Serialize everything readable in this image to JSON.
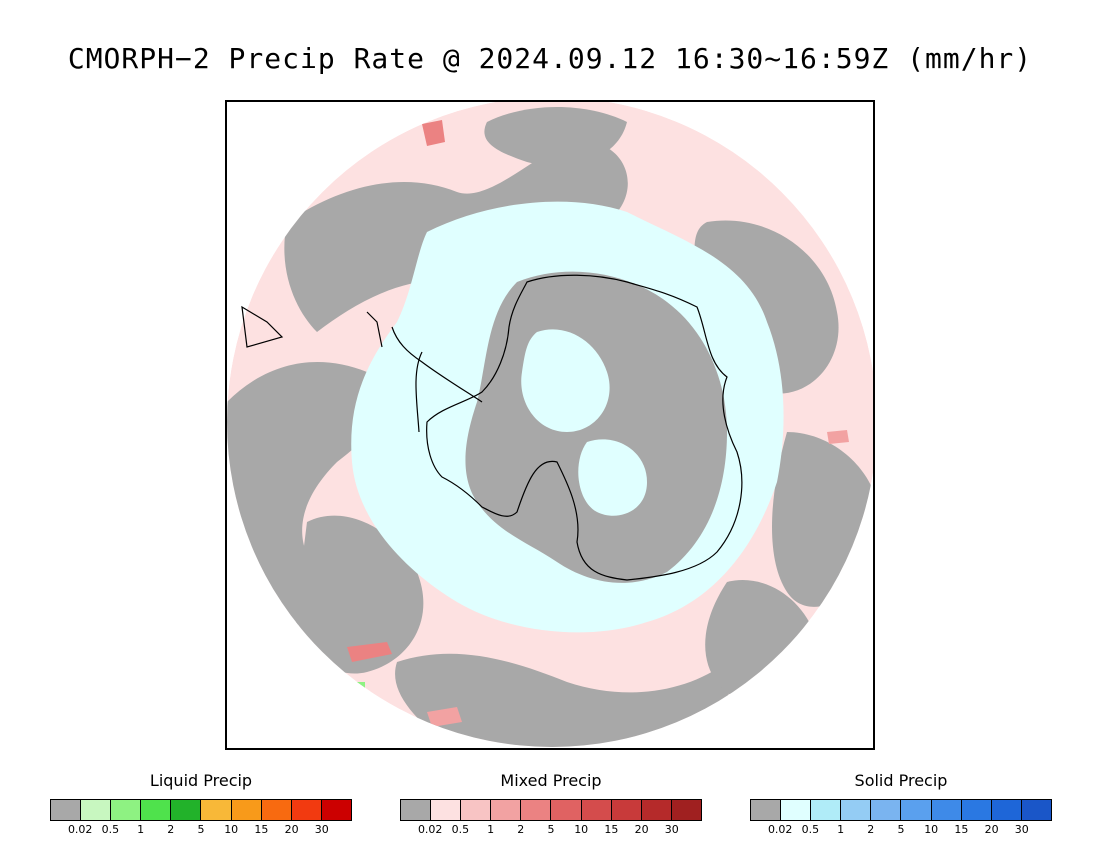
{
  "title": "CMORPH−2 Precip Rate @ 2024.09.12 16:30~16:59Z (mm/hr)",
  "map": {
    "projection": "south-polar-stereographic",
    "features": [
      "precip-field",
      "coastline"
    ],
    "region": "Antarctica and Southern Ocean"
  },
  "legends": [
    {
      "title": "Liquid Precip",
      "ticks": [
        "0.02",
        "0.5",
        "1",
        "2",
        "5",
        "10",
        "15",
        "20",
        "30"
      ],
      "colors": [
        "#a8a8a8",
        "#c8f7c0",
        "#8ef282",
        "#4fe24c",
        "#22b22a",
        "#f8b838",
        "#f89a1a",
        "#f86a10",
        "#f23a10",
        "#cc0000"
      ]
    },
    {
      "title": "Mixed Precip",
      "ticks": [
        "0.02",
        "0.5",
        "1",
        "2",
        "5",
        "10",
        "15",
        "20",
        "30"
      ],
      "colors": [
        "#a8a8a8",
        "#fde1e1",
        "#f8c4c4",
        "#f2a2a2",
        "#eb8282",
        "#e06262",
        "#d44c4c",
        "#c83a3a",
        "#b52a2a",
        "#a02020"
      ]
    },
    {
      "title": "Solid Precip",
      "ticks": [
        "0.02",
        "0.5",
        "1",
        "2",
        "5",
        "10",
        "15",
        "20",
        "30"
      ],
      "colors": [
        "#a8a8a8",
        "#e0ffff",
        "#b0ecf8",
        "#94ccf4",
        "#7ab4f0",
        "#5aa0ee",
        "#3e8ae8",
        "#2a78e2",
        "#1e66d8",
        "#1a56c8"
      ]
    }
  ]
}
